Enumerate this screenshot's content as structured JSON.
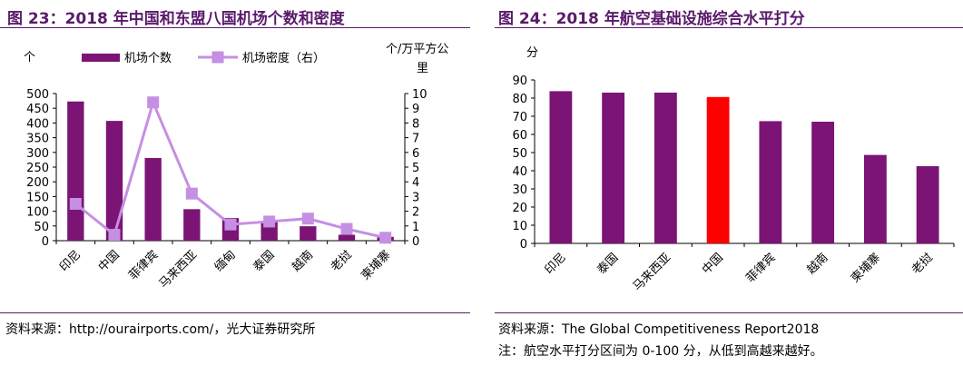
{
  "left_panel": {
    "figure_title": "图 23：2018 年中国和东盟八国机场个数和密度",
    "source": "资料来源：http://ourairports.com/，光大证券研究所"
  },
  "right_panel": {
    "figure_title": "图 24：2018 年航空基础设施综合水平打分",
    "source": "资料来源：The Global Competitiveness Report2018",
    "note": "注：航空水平打分区间为 0-100 分，从低到高越来越好。"
  },
  "chart_data": [
    {
      "type": "bar",
      "categories": [
        "印尼",
        "中国",
        "菲律宾",
        "马来西亚",
        "缅甸",
        "泰国",
        "越南",
        "老挝",
        "柬埔寨"
      ],
      "series": [
        {
          "name": "机场个数",
          "kind": "bar",
          "axis": "left",
          "values": [
            473,
            407,
            281,
            107,
            77,
            65,
            49,
            20,
            13
          ]
        },
        {
          "name": "机场密度（右）",
          "kind": "line",
          "axis": "right",
          "values": [
            2.5,
            0.4,
            9.4,
            3.2,
            1.1,
            1.3,
            1.5,
            0.8,
            0.2
          ]
        }
      ],
      "ylabel": "个",
      "ylabel_right": "个/万平方公里",
      "ylim": [
        0,
        500
      ],
      "yticks": [
        0,
        50,
        100,
        150,
        200,
        250,
        300,
        350,
        400,
        450,
        500
      ],
      "ylim_right": [
        0,
        10
      ],
      "yticks_right": [
        0,
        1,
        2,
        3,
        4,
        5,
        6,
        7,
        8,
        9,
        10
      ],
      "legend_position": "top",
      "grid": false,
      "colors": {
        "bar": "#7b1474",
        "line": "#c58fe3"
      }
    },
    {
      "type": "bar",
      "categories": [
        "印尼",
        "泰国",
        "马来西亚",
        "中国",
        "菲律宾",
        "越南",
        "柬埔寨",
        "老挝"
      ],
      "values": [
        83.8,
        83.0,
        83.0,
        80.6,
        67.3,
        67.0,
        48.7,
        42.5
      ],
      "highlight": "中国",
      "ylabel": "分",
      "ylim": [
        0,
        90
      ],
      "yticks": [
        0,
        10,
        20,
        30,
        40,
        50,
        60,
        70,
        80,
        90
      ],
      "grid": false,
      "colors": {
        "bar": "#7b1474",
        "highlight": "#ff0000"
      }
    }
  ]
}
